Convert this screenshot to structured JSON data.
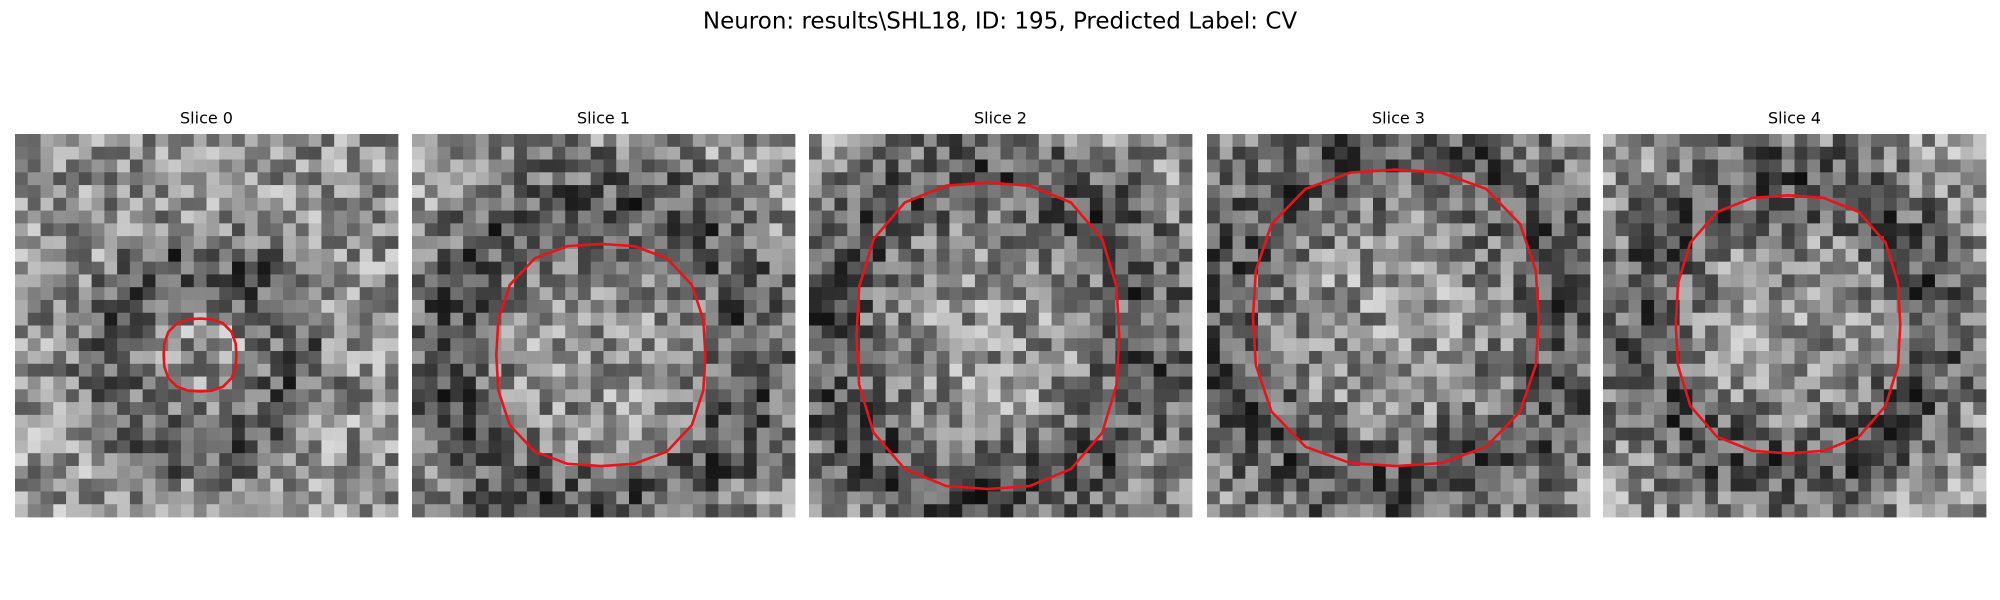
{
  "title": "Neuron: results\\SHL18, ID: 195, Predicted Label: CV",
  "panels": [
    {
      "title": "Slice 0"
    },
    {
      "title": "Slice 1"
    },
    {
      "title": "Slice 2"
    },
    {
      "title": "Slice 3"
    },
    {
      "title": "Slice 4"
    }
  ]
}
